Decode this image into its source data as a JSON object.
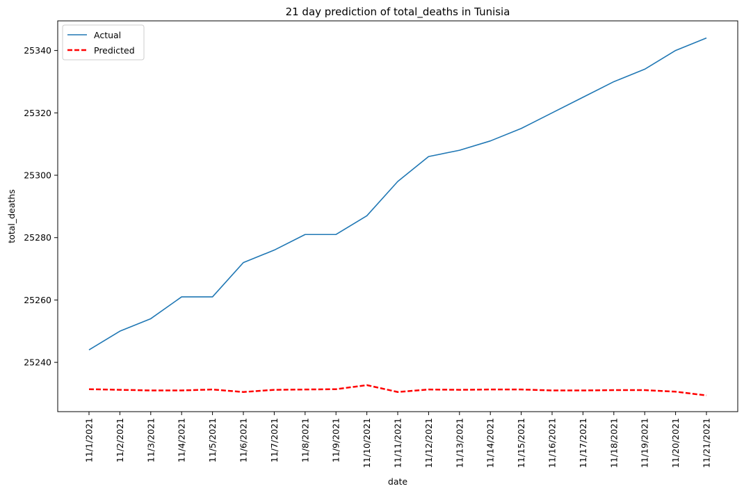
{
  "chart_data": {
    "type": "line",
    "title": "21 day prediction of total_deaths in Tunisia",
    "xlabel": "date",
    "ylabel": "total_deaths",
    "x": [
      "11/1/2021",
      "11/2/2021",
      "11/3/2021",
      "11/4/2021",
      "11/5/2021",
      "11/6/2021",
      "11/7/2021",
      "11/8/2021",
      "11/9/2021",
      "11/10/2021",
      "11/11/2021",
      "11/12/2021",
      "11/13/2021",
      "11/14/2021",
      "11/15/2021",
      "11/16/2021",
      "11/17/2021",
      "11/18/2021",
      "11/19/2021",
      "11/20/2021",
      "11/21/2021"
    ],
    "series": [
      {
        "name": "Actual",
        "color": "#1f77b4",
        "style": "solid",
        "values": [
          25244,
          25250,
          25254,
          25261,
          25261,
          25272,
          25276,
          25281,
          25281,
          25287,
          25298,
          25306,
          25308,
          25311,
          25315,
          25320,
          25325,
          25330,
          25334,
          25340,
          25344
        ]
      },
      {
        "name": "Predicted",
        "color": "#ff0000",
        "style": "dashed",
        "values": [
          25231.4,
          25231.2,
          25231.0,
          25231.0,
          25231.3,
          25230.5,
          25231.2,
          25231.3,
          25231.4,
          25232.7,
          25230.5,
          25231.3,
          25231.2,
          25231.3,
          25231.3,
          25231.0,
          25231.0,
          25231.1,
          25231.1,
          25230.6,
          25229.4
        ]
      }
    ],
    "yticks": [
      25240,
      25260,
      25280,
      25300,
      25320,
      25340
    ],
    "ylim": [
      25224.2,
      25349.5
    ],
    "grid": false,
    "legend": "top-left"
  }
}
